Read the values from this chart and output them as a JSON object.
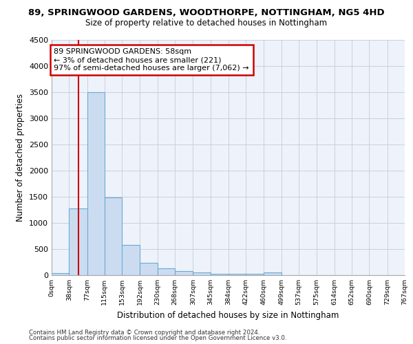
{
  "title_line1": "89, SPRINGWOOD GARDENS, WOODTHORPE, NOTTINGHAM, NG5 4HD",
  "title_line2": "Size of property relative to detached houses in Nottingham",
  "xlabel": "Distribution of detached houses by size in Nottingham",
  "ylabel": "Number of detached properties",
  "footer_line1": "Contains HM Land Registry data © Crown copyright and database right 2024.",
  "footer_line2": "Contains public sector information licensed under the Open Government Licence v3.0.",
  "bin_edges": [
    0,
    38,
    77,
    115,
    153,
    192,
    230,
    268,
    307,
    345,
    384,
    422,
    460,
    499,
    537,
    575,
    614,
    652,
    690,
    729,
    767
  ],
  "bar_heights": [
    40,
    1270,
    3500,
    1480,
    580,
    240,
    125,
    80,
    50,
    25,
    30,
    20,
    50,
    0,
    0,
    0,
    0,
    0,
    0,
    0
  ],
  "bar_color": "#ccdcf0",
  "bar_edge_color": "#6aaad4",
  "vline_x": 58,
  "vline_color": "#cc0000",
  "annotation_text": "89 SPRINGWOOD GARDENS: 58sqm\n← 3% of detached houses are smaller (221)\n97% of semi-detached houses are larger (7,062) →",
  "annotation_box_edgecolor": "#cc0000",
  "ylim": [
    0,
    4500
  ],
  "yticks": [
    0,
    500,
    1000,
    1500,
    2000,
    2500,
    3000,
    3500,
    4000,
    4500
  ],
  "grid_color": "#c8d0e0",
  "background_color": "#ffffff",
  "axes_background": "#eef2fa"
}
